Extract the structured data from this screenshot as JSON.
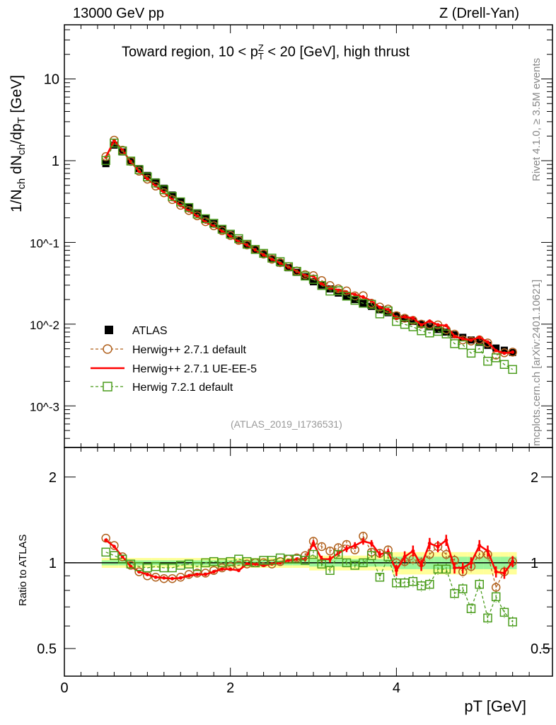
{
  "header": {
    "left": "13000 GeV pp",
    "right": "Z (Drell-Yan)"
  },
  "side_labels": {
    "rivet": "Rivet 4.1.0, ≥ 3.5M events",
    "mcplots": "mcplots.cern.ch [arXiv:2401.10621]"
  },
  "ylabel_parts": {
    "a": "1/N",
    "b": "ch",
    "c": " dN",
    "d": "ch",
    "e": "/dp",
    "f": "T",
    "g": " [GeV]"
  },
  "title_parts": {
    "a": "Toward region, 10 < p",
    "sup": "Z",
    "sub": "T",
    "b": " < 20 [GeV], high thrust"
  },
  "analysis_id": "(ATLAS_2019_I1736531)",
  "ratio_ylabel": "Ratio to ATLAS",
  "xlabel_parts": {
    "a": "p",
    "sub": "T",
    "b": " [GeV]"
  },
  "colors": {
    "atlas": "#000000",
    "h271def": "#b0601c",
    "h271ue": "#ff0000",
    "h721": "#4a9c1c",
    "band_outer": "#ffff99",
    "band_inner": "#99f599"
  },
  "chart_data": {
    "type": "scatter",
    "title": "Toward region, 10 < pT^Z < 20 [GeV], high thrust",
    "xlabel": "pT [GeV]",
    "ylabel": "1/Nch dNch/dpT [GeV]",
    "xlim": [
      0,
      5.88
    ],
    "ylim": [
      0.00031,
      46
    ],
    "yscale": "log",
    "ratio_ylim": [
      0.4,
      2.54
    ],
    "x_ticks": [
      "0",
      "2",
      "4"
    ],
    "x_tick_values": [
      0,
      2,
      4
    ],
    "y_ticks": [
      "10",
      "1",
      "10^-1",
      "10^-2",
      "10^-3"
    ],
    "y_tick_values": [
      10,
      1,
      0.1,
      0.01,
      0.001
    ],
    "ratio_ticks": [
      "2",
      "1",
      "0.5"
    ],
    "ratio_tick_values": [
      2,
      1,
      0.5
    ],
    "legend": {
      "placement": "lower-left",
      "entries": [
        "ATLAS",
        "Herwig++ 2.7.1 default",
        "Herwig++ 2.7.1 UE-EE-5",
        "Herwig 7.2.1 default"
      ]
    },
    "x": [
      0.5,
      0.6,
      0.7,
      0.8,
      0.9,
      1.0,
      1.1,
      1.2,
      1.3,
      1.4,
      1.5,
      1.6,
      1.7,
      1.8,
      1.9,
      2.0,
      2.1,
      2.2,
      2.3,
      2.4,
      2.5,
      2.6,
      2.7,
      2.8,
      2.9,
      3.0,
      3.1,
      3.2,
      3.3,
      3.4,
      3.5,
      3.6,
      3.7,
      3.8,
      3.9,
      4.0,
      4.1,
      4.2,
      4.3,
      4.4,
      4.5,
      4.6,
      4.7,
      4.8,
      4.9,
      5.0,
      5.1,
      5.2,
      5.3,
      5.4
    ],
    "atlas": [
      0.92,
      1.55,
      1.28,
      1.0,
      0.8,
      0.66,
      0.55,
      0.46,
      0.38,
      0.32,
      0.27,
      0.23,
      0.195,
      0.17,
      0.145,
      0.125,
      0.108,
      0.094,
      0.082,
      0.072,
      0.063,
      0.056,
      0.049,
      0.043,
      0.038,
      0.033,
      0.03,
      0.027,
      0.024,
      0.022,
      0.02,
      0.018,
      0.0165,
      0.015,
      0.0138,
      0.0127,
      0.0117,
      0.0108,
      0.01,
      0.0093,
      0.0086,
      0.008,
      0.0074,
      0.0069,
      0.0064,
      0.006,
      0.0055,
      0.0051,
      0.0048,
      0.0045
    ],
    "band_total_rel": [
      0.04,
      0.04,
      0.04,
      0.04,
      0.04,
      0.04,
      0.04,
      0.04,
      0.04,
      0.04,
      0.04,
      0.04,
      0.04,
      0.04,
      0.04,
      0.04,
      0.04,
      0.04,
      0.04,
      0.04,
      0.04,
      0.04,
      0.04,
      0.04,
      0.04,
      0.06,
      0.06,
      0.06,
      0.06,
      0.06,
      0.06,
      0.06,
      0.06,
      0.06,
      0.06,
      0.09,
      0.09,
      0.09,
      0.09,
      0.09,
      0.09,
      0.09,
      0.09,
      0.09,
      0.09,
      0.09,
      0.09,
      0.09,
      0.09,
      0.09
    ],
    "band_inner_rel": [
      0.02,
      0.02,
      0.02,
      0.02,
      0.02,
      0.02,
      0.02,
      0.02,
      0.02,
      0.02,
      0.02,
      0.02,
      0.02,
      0.02,
      0.02,
      0.02,
      0.02,
      0.02,
      0.02,
      0.02,
      0.02,
      0.02,
      0.02,
      0.02,
      0.02,
      0.03,
      0.03,
      0.03,
      0.03,
      0.03,
      0.03,
      0.03,
      0.03,
      0.03,
      0.03,
      0.05,
      0.05,
      0.05,
      0.05,
      0.05,
      0.05,
      0.05,
      0.05,
      0.05,
      0.05,
      0.05,
      0.05,
      0.05,
      0.05,
      0.05
    ],
    "series": [
      {
        "name": "Herwig++ 2.7.1 default",
        "key": "h271def",
        "style": "dashed-circle",
        "ratio": [
          1.22,
          1.15,
          1.05,
          0.98,
          0.93,
          0.9,
          0.89,
          0.88,
          0.88,
          0.89,
          0.91,
          0.92,
          0.92,
          0.94,
          0.96,
          0.97,
          0.98,
          0.99,
          1.0,
          1.0,
          0.99,
          1.01,
          1.03,
          1.04,
          1.06,
          1.19,
          1.14,
          1.1,
          1.13,
          1.16,
          1.11,
          1.24,
          1.09,
          1.08,
          1.11,
          1.0,
          1.01,
          1.03,
          1.0,
          1.07,
          1.14,
          1.07,
          1.02,
          0.93,
          0.97,
          1.07,
          1.07,
          0.82,
          0.93,
          1.01
        ]
      },
      {
        "name": "Herwig++ 2.7.1 UE-EE-5",
        "key": "h271ue",
        "style": "solid",
        "ratio": [
          1.2,
          1.14,
          1.05,
          0.97,
          0.93,
          0.91,
          0.89,
          0.885,
          0.88,
          0.885,
          0.9,
          0.91,
          0.91,
          0.93,
          0.95,
          0.95,
          0.94,
          0.99,
          0.99,
          0.98,
          0.99,
          1.0,
          1.02,
          1.03,
          1.03,
          1.17,
          1.03,
          1.03,
          1.08,
          1.12,
          1.15,
          1.19,
          1.17,
          1.07,
          1.09,
          0.94,
          1.05,
          1.1,
          0.98,
          1.17,
          1.14,
          1.2,
          0.96,
          0.96,
          1.0,
          1.15,
          1.1,
          0.93,
          0.92,
          1.01
        ]
      },
      {
        "name": "Herwig 7.2.1 default",
        "key": "h721",
        "style": "dashed-square",
        "ratio": [
          1.09,
          1.06,
          1.03,
          0.99,
          0.97,
          0.96,
          0.97,
          0.96,
          0.96,
          0.98,
          0.99,
          0.97,
          1.0,
          1.01,
          1.0,
          1.01,
          1.03,
          1.01,
          1.0,
          1.02,
          1.02,
          1.04,
          1.03,
          1.03,
          1.02,
          1.07,
          0.99,
          0.94,
          1.07,
          1.0,
          0.98,
          1.0,
          1.06,
          0.89,
          1.05,
          0.85,
          0.85,
          0.86,
          0.83,
          0.84,
          0.95,
          0.95,
          0.78,
          0.81,
          0.69,
          0.84,
          0.64,
          0.76,
          0.67,
          0.62
        ]
      }
    ]
  }
}
